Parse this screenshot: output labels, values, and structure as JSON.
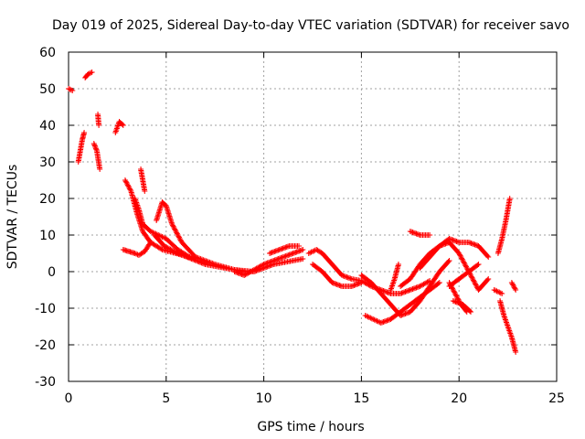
{
  "chart_data": {
    "type": "scatter",
    "title": "Day 019 of 2025, Sidereal Day-to-day VTEC variation (SDTVAR) for receiver savo",
    "xlabel": "GPS time / hours",
    "ylabel": "SDTVAR / TECUs",
    "xlim": [
      0,
      25
    ],
    "ylim": [
      -30,
      60
    ],
    "xticks": [
      0,
      5,
      10,
      15,
      20,
      25
    ],
    "yticks": [
      -30,
      -20,
      -10,
      0,
      10,
      20,
      30,
      40,
      50,
      60
    ],
    "grid": true,
    "marker": "+",
    "color": "#ff0000",
    "series": [
      {
        "name": "arc-1",
        "x": [
          0.0,
          0.2
        ],
        "y": [
          50,
          49.5
        ]
      },
      {
        "name": "arc-2",
        "x": [
          0.5,
          0.6,
          0.7,
          0.8
        ],
        "y": [
          30,
          33,
          36,
          38
        ]
      },
      {
        "name": "arc-3",
        "x": [
          0.85,
          1.0,
          1.2
        ],
        "y": [
          53,
          54,
          54.5
        ]
      },
      {
        "name": "arc-4",
        "x": [
          1.3,
          1.45,
          1.6
        ],
        "y": [
          35,
          33,
          28
        ]
      },
      {
        "name": "arc-5",
        "x": [
          1.5,
          1.55
        ],
        "y": [
          43,
          40
        ]
      },
      {
        "name": "arc-6",
        "x": [
          2.4,
          2.6,
          2.8
        ],
        "y": [
          38,
          41,
          40
        ]
      },
      {
        "name": "arc-7",
        "x": [
          2.9,
          3.2,
          3.5,
          3.8,
          4.2,
          4.8,
          5.5,
          6.5
        ],
        "y": [
          25,
          22,
          16,
          11,
          8,
          6,
          5,
          3.5
        ]
      },
      {
        "name": "arc-8",
        "x": [
          2.8,
          3.1,
          3.4,
          3.6,
          3.9,
          4.2
        ],
        "y": [
          6,
          5.5,
          5,
          4.5,
          5.5,
          8
        ]
      },
      {
        "name": "arc-9",
        "x": [
          3.4,
          3.6,
          3.8,
          4.2,
          5.0,
          5.6,
          6.2
        ],
        "y": [
          20,
          17,
          13,
          11,
          9,
          6,
          4
        ]
      },
      {
        "name": "arc-10",
        "x": [
          3.7,
          3.8,
          3.9
        ],
        "y": [
          28,
          25,
          22
        ]
      },
      {
        "name": "arc-11",
        "x": [
          4.5,
          4.8,
          5.0,
          5.3,
          5.8,
          6.5,
          7.5,
          8.5,
          9.5
        ],
        "y": [
          14,
          19,
          18,
          13,
          8,
          4,
          2,
          0.5,
          0
        ]
      },
      {
        "name": "arc-12",
        "x": [
          4.4,
          4.9,
          5.6,
          6.3,
          7.0,
          8.0,
          9.0
        ],
        "y": [
          10,
          7,
          5,
          3.5,
          2,
          1,
          0
        ]
      },
      {
        "name": "arc-13",
        "x": [
          8.5,
          9.0,
          9.5,
          10.0,
          10.5,
          11.0,
          11.5,
          12.0
        ],
        "y": [
          0,
          -1,
          0.5,
          2,
          3,
          4,
          5,
          6
        ]
      },
      {
        "name": "arc-14",
        "x": [
          9.5,
          10.0,
          10.5,
          11.0,
          11.5,
          12.0
        ],
        "y": [
          0,
          1,
          2,
          2.5,
          3,
          3.5
        ]
      },
      {
        "name": "arc-15",
        "x": [
          10.3,
          10.8,
          11.3,
          11.8
        ],
        "y": [
          5,
          6,
          7,
          7
        ]
      },
      {
        "name": "arc-16",
        "x": [
          12.3,
          12.7,
          13.0,
          13.5,
          14.0,
          14.5,
          15.0,
          15.5,
          16.0,
          16.5,
          17.0,
          17.5,
          18.0,
          18.5
        ],
        "y": [
          5,
          6,
          5,
          2,
          -1,
          -2,
          -2.5,
          -4,
          -5,
          -6,
          -6,
          -5,
          -4,
          -2.5
        ]
      },
      {
        "name": "arc-17",
        "x": [
          12.5,
          13.0,
          13.5,
          14.0,
          14.5,
          15.0
        ],
        "y": [
          2,
          0,
          -3,
          -4,
          -4,
          -3
        ]
      },
      {
        "name": "arc-18",
        "x": [
          15.0,
          15.5,
          16.0,
          16.5,
          17.0,
          17.5,
          18.0,
          18.5,
          19.0,
          19.5
        ],
        "y": [
          -1,
          -3,
          -6,
          -9,
          -12,
          -11,
          -8,
          -4,
          0,
          3
        ]
      },
      {
        "name": "arc-19",
        "x": [
          15.2,
          15.6,
          16.0,
          16.5,
          17.0,
          17.5,
          18.0,
          18.5,
          19.0
        ],
        "y": [
          -12,
          -13,
          -14,
          -13,
          -11,
          -9,
          -7,
          -5,
          -3
        ]
      },
      {
        "name": "arc-20",
        "x": [
          16.5,
          16.7,
          16.9
        ],
        "y": [
          -5,
          -2,
          2
        ]
      },
      {
        "name": "arc-21",
        "x": [
          17.0,
          17.5,
          18.0,
          18.5,
          19.0,
          19.5,
          20.0,
          20.5,
          21.0,
          21.5
        ],
        "y": [
          -4,
          -2,
          2,
          5,
          7,
          9,
          8,
          8,
          7,
          4
        ]
      },
      {
        "name": "arc-22",
        "x": [
          17.5,
          18.0,
          18.5
        ],
        "y": [
          11,
          10,
          10
        ]
      },
      {
        "name": "arc-23",
        "x": [
          18.0,
          18.5,
          19.0,
          19.5,
          20.0,
          20.5,
          21.0,
          21.5
        ],
        "y": [
          1,
          4,
          7,
          8,
          5,
          0,
          -5,
          -2
        ]
      },
      {
        "name": "arc-24",
        "x": [
          19.5,
          19.8,
          20.1,
          20.4
        ],
        "y": [
          -3,
          -6,
          -9,
          -11
        ]
      },
      {
        "name": "arc-25",
        "x": [
          19.5,
          20.0,
          20.5,
          21.0
        ],
        "y": [
          -4,
          -2,
          0,
          2
        ]
      },
      {
        "name": "arc-26",
        "x": [
          19.7,
          20.2,
          20.6
        ],
        "y": [
          -8,
          -9,
          -11
        ]
      },
      {
        "name": "arc-27",
        "x": [
          21.8,
          22.2
        ],
        "y": [
          -5,
          -6
        ]
      },
      {
        "name": "arc-28",
        "x": [
          22.0,
          22.2,
          22.4,
          22.6
        ],
        "y": [
          5,
          9,
          14,
          20
        ]
      },
      {
        "name": "arc-29",
        "x": [
          22.1,
          22.3,
          22.5,
          22.7,
          22.9
        ],
        "y": [
          -8,
          -12,
          -15,
          -18,
          -22
        ]
      },
      {
        "name": "arc-30",
        "x": [
          22.7,
          22.9
        ],
        "y": [
          -3,
          -5
        ]
      }
    ]
  }
}
